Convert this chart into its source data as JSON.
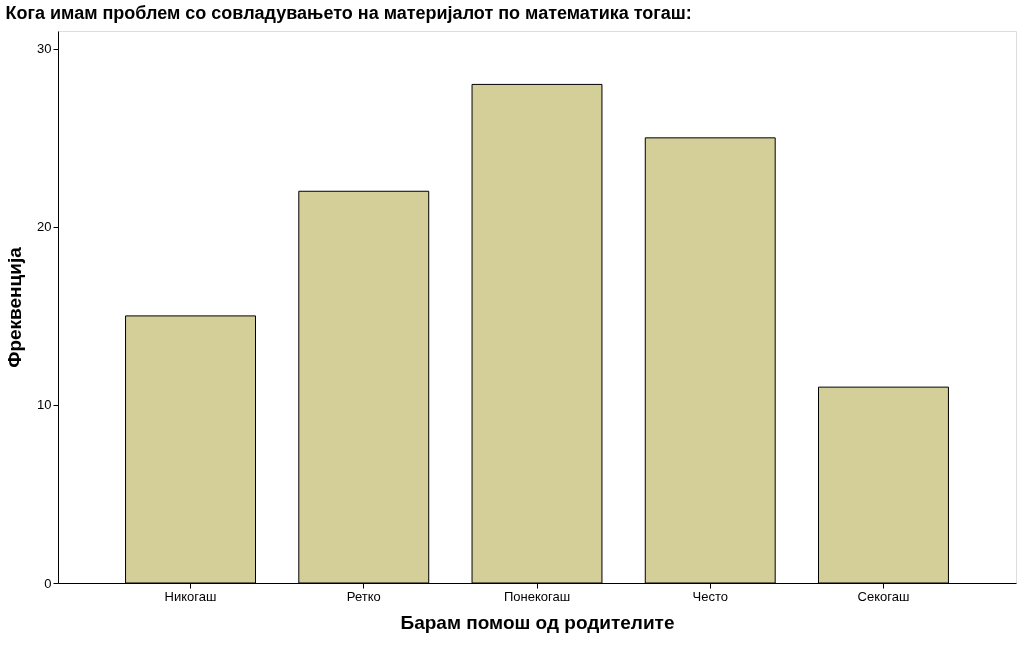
{
  "chart_data": {
    "type": "bar",
    "title": "Кога имам проблем со совладувањето на материјалот по математика тогаш:",
    "xlabel": "Барам помош од родителите",
    "ylabel": "Фреквенција",
    "categories": [
      "Никогаш",
      "Ретко",
      "Понекогаш",
      "Често",
      "Секогаш"
    ],
    "values": [
      15,
      22,
      28,
      25,
      11
    ],
    "color": "#d4ce98",
    "ylim": [
      0,
      31
    ],
    "yticks": [
      0,
      10,
      20,
      30
    ],
    "grid": false
  }
}
